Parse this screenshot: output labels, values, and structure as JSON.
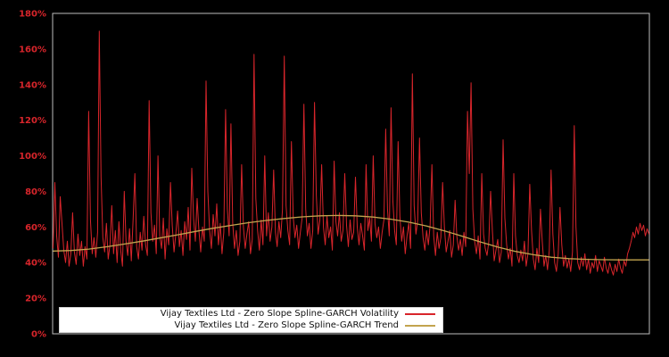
{
  "figure": {
    "background": "#000000",
    "plot_border_color": "#bebebe"
  },
  "chart_data": {
    "type": "line",
    "title": "",
    "xlabel": "",
    "ylabel": "",
    "ylim": [
      0,
      180
    ],
    "grid": false,
    "x_tick_labels": [],
    "y_ticks": {
      "values": [
        0,
        20,
        40,
        60,
        80,
        100,
        120,
        140,
        160,
        180
      ],
      "labels": [
        "0%",
        "20%",
        "40%",
        "60%",
        "80%",
        "100%",
        "120%",
        "140%",
        "160%",
        "180%"
      ],
      "color": "#d8252b"
    },
    "legend": {
      "position": "lower-left-inside",
      "background": "#ffffff",
      "text_color": "#111111",
      "entries": [
        {
          "label": "Vijay Textiles Ltd - Zero Slope Spline-GARCH Volatility",
          "color": "#d8252b"
        },
        {
          "label": "Vijay Textiles Ltd - Zero Slope Spline-GARCH Trend",
          "color": "#c2a44e"
        }
      ]
    },
    "series": [
      {
        "name": "Vijay Textiles Ltd - Zero Slope Spline-GARCH Volatility",
        "color": "#d8252b",
        "unit": "percent",
        "values": [
          48,
          85,
          55,
          43,
          77,
          62,
          47,
          40,
          52,
          38,
          45,
          68,
          46,
          39,
          56,
          44,
          52,
          38,
          49,
          42,
          125,
          64,
          45,
          54,
          43,
          57,
          170,
          88,
          54,
          46,
          62,
          42,
          50,
          72,
          45,
          58,
          40,
          63,
          47,
          38,
          80,
          52,
          44,
          59,
          41,
          64,
          90,
          49,
          42,
          57,
          47,
          66,
          50,
          44,
          131,
          68,
          52,
          61,
          45,
          100,
          55,
          48,
          65,
          42,
          59,
          50,
          85,
          61,
          46,
          56,
          69,
          49,
          58,
          44,
          63,
          53,
          71,
          47,
          93,
          65,
          52,
          76,
          58,
          46,
          60,
          52,
          142,
          80,
          58,
          48,
          67,
          55,
          73,
          50,
          62,
          45,
          57,
          126,
          70,
          55,
          118,
          62,
          48,
          58,
          44,
          52,
          95,
          60,
          48,
          56,
          63,
          45,
          53,
          157,
          76,
          58,
          47,
          64,
          50,
          100,
          55,
          68,
          52,
          60,
          92,
          57,
          49,
          63,
          54,
          70,
          156,
          72,
          58,
          50,
          108,
          66,
          54,
          61,
          48,
          57,
          65,
          129,
          70,
          55,
          62,
          48,
          58,
          130,
          78,
          56,
          64,
          95,
          60,
          50,
          66,
          54,
          60,
          47,
          97,
          63,
          55,
          68,
          52,
          58,
          90,
          61,
          49,
          64,
          53,
          57,
          88,
          60,
          50,
          62,
          55,
          47,
          95,
          58,
          65,
          52,
          100,
          62,
          54,
          60,
          48,
          57,
          64,
          115,
          70,
          55,
          127,
          75,
          58,
          50,
          108,
          66,
          52,
          60,
          45,
          55,
          62,
          48,
          146,
          72,
          56,
          64,
          110,
          68,
          54,
          47,
          58,
          50,
          61,
          95,
          55,
          44,
          57,
          48,
          54,
          85,
          60,
          46,
          52,
          58,
          43,
          50,
          75,
          55,
          47,
          53,
          44,
          57,
          49,
          125,
          90,
          141,
          70,
          52,
          45,
          55,
          42,
          90,
          56,
          48,
          44,
          52,
          80,
          58,
          41,
          47,
          53,
          40,
          46,
          109,
          65,
          50,
          42,
          48,
          38,
          90,
          55,
          44,
          40,
          47,
          41,
          52,
          38,
          45,
          84,
          58,
          42,
          36,
          48,
          40,
          70,
          52,
          38,
          44,
          36,
          47,
          92,
          56,
          40,
          35,
          45,
          71,
          50,
          38,
          44,
          37,
          42,
          35,
          46,
          117,
          60,
          40,
          36,
          43,
          38,
          45,
          36,
          42,
          34,
          40,
          37,
          44,
          35,
          41,
          38,
          35,
          43,
          37,
          34,
          40,
          36,
          33,
          39,
          35,
          42,
          37,
          34,
          41,
          38,
          45,
          48,
          52,
          57,
          54,
          60,
          56,
          62,
          58,
          61,
          55,
          59,
          56
        ]
      },
      {
        "name": "Vijay Textiles Ltd - Zero Slope Spline-GARCH Trend",
        "color": "#c2a44e",
        "unit": "percent",
        "pos": [
          0,
          0.03,
          0.06,
          0.09,
          0.119,
          0.149,
          0.179,
          0.209,
          0.239,
          0.269,
          0.299,
          0.328,
          0.358,
          0.388,
          0.418,
          0.448,
          0.478,
          0.507,
          0.537,
          0.567,
          0.597,
          0.627,
          0.657,
          0.687,
          0.716,
          0.746,
          0.776,
          0.806,
          0.836,
          0.866,
          0.896,
          0.925,
          0.955,
          0.985,
          1
        ],
        "values": [
          46.5,
          46.8,
          47.6,
          48.9,
          50.4,
          52,
          53.8,
          55.6,
          57.5,
          59.3,
          60.9,
          62.4,
          63.7,
          64.8,
          65.7,
          66.3,
          66.5,
          66.3,
          65.6,
          64.4,
          62.7,
          60.5,
          57.8,
          54.8,
          51.7,
          48.8,
          46.3,
          44.4,
          43,
          42.2,
          41.8,
          41.6,
          41.5,
          41.5,
          41.5
        ]
      }
    ]
  }
}
